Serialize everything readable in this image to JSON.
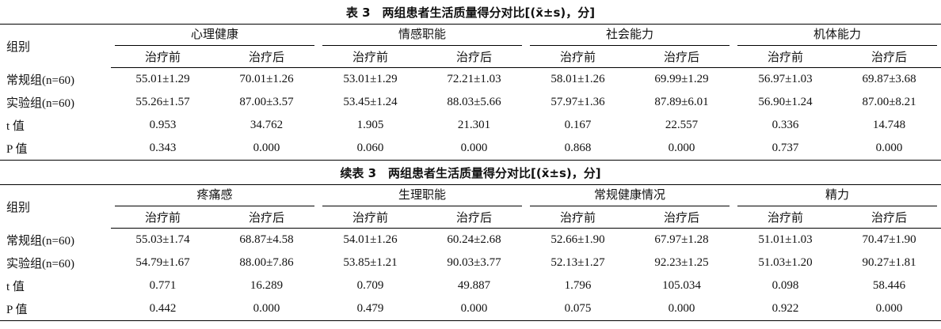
{
  "tables": [
    {
      "title": "表 3　两组患者生活质量得分对比[(x̄±s)，分]",
      "group_label": "组别",
      "groups": [
        "心理健康",
        "情感职能",
        "社会能力",
        "机体能力"
      ],
      "subheaders": [
        "治疗前",
        "治疗后",
        "治疗前",
        "治疗后",
        "治疗前",
        "治疗后",
        "治疗前",
        "治疗后"
      ],
      "rows": [
        {
          "label": "常规组(n=60)",
          "cells": [
            "55.01±1.29",
            "70.01±1.26",
            "53.01±1.29",
            "72.21±1.03",
            "58.01±1.26",
            "69.99±1.29",
            "56.97±1.03",
            "69.87±3.68"
          ]
        },
        {
          "label": "实验组(n=60)",
          "cells": [
            "55.26±1.57",
            "87.00±3.57",
            "53.45±1.24",
            "88.03±5.66",
            "57.97±1.36",
            "87.89±6.01",
            "56.90±1.24",
            "87.00±8.21"
          ]
        },
        {
          "label": "t 值",
          "cells": [
            "0.953",
            "34.762",
            "1.905",
            "21.301",
            "0.167",
            "22.557",
            "0.336",
            "14.748"
          ]
        },
        {
          "label": "P 值",
          "cells": [
            "0.343",
            "0.000",
            "0.060",
            "0.000",
            "0.868",
            "0.000",
            "0.737",
            "0.000"
          ]
        }
      ]
    },
    {
      "title": "续表 3　两组患者生活质量得分对比[(x̄±s)，分]",
      "group_label": "组别",
      "groups": [
        "疼痛感",
        "生理职能",
        "常规健康情况",
        "精力"
      ],
      "subheaders": [
        "治疗前",
        "治疗后",
        "治疗前",
        "治疗后",
        "治疗前",
        "治疗后",
        "治疗前",
        "治疗后"
      ],
      "rows": [
        {
          "label": "常规组(n=60)",
          "cells": [
            "55.03±1.74",
            "68.87±4.58",
            "54.01±1.26",
            "60.24±2.68",
            "52.66±1.90",
            "67.97±1.28",
            "51.01±1.03",
            "70.47±1.90"
          ]
        },
        {
          "label": "实验组(n=60)",
          "cells": [
            "54.79±1.67",
            "88.00±7.86",
            "53.85±1.21",
            "90.03±3.77",
            "52.13±1.27",
            "92.23±1.25",
            "51.03±1.20",
            "90.27±1.81"
          ]
        },
        {
          "label": "t 值",
          "cells": [
            "0.771",
            "16.289",
            "0.709",
            "49.887",
            "1.796",
            "105.034",
            "0.098",
            "58.446"
          ]
        },
        {
          "label": "P 值",
          "cells": [
            "0.442",
            "0.000",
            "0.479",
            "0.000",
            "0.075",
            "0.000",
            "0.922",
            "0.000"
          ]
        }
      ]
    }
  ]
}
